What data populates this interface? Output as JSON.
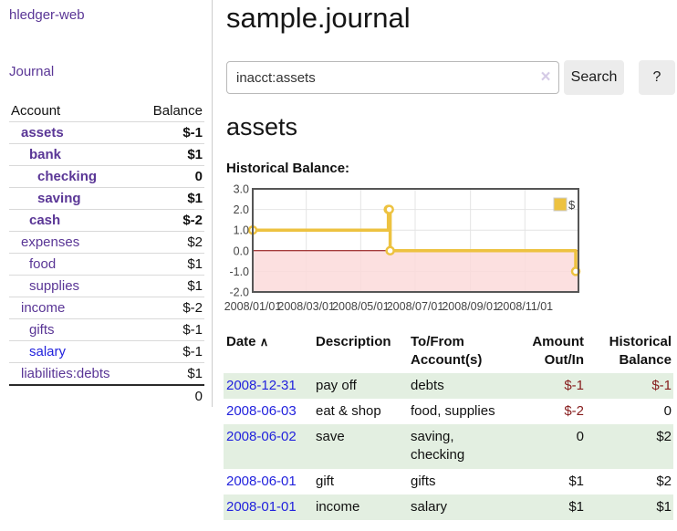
{
  "sidebar": {
    "brand": "hledger-web",
    "journal_label": "Journal",
    "accounts_table": {
      "headers": {
        "account": "Account",
        "balance": "Balance"
      },
      "rows": [
        {
          "label": "assets",
          "level": 1,
          "bold": true,
          "link_color": "purple",
          "balance": "$-1",
          "cls": "neg"
        },
        {
          "label": "bank",
          "level": 2,
          "bold": true,
          "link_color": "purple",
          "balance": "$1",
          "cls": ""
        },
        {
          "label": "checking",
          "level": 3,
          "bold": true,
          "link_color": "purple",
          "balance": "0",
          "cls": ""
        },
        {
          "label": "saving",
          "level": 3,
          "bold": true,
          "link_color": "purple",
          "balance": "$1",
          "cls": ""
        },
        {
          "label": "cash",
          "level": 2,
          "bold": true,
          "link_color": "purple",
          "balance": "$-2",
          "cls": "neg"
        },
        {
          "label": "expenses",
          "level": 1,
          "bold": false,
          "link_color": "purple",
          "balance": "$2",
          "cls": ""
        },
        {
          "label": "food",
          "level": 2,
          "bold": false,
          "link_color": "purple",
          "balance": "$1",
          "cls": ""
        },
        {
          "label": "supplies",
          "level": 2,
          "bold": false,
          "link_color": "purple",
          "balance": "$1",
          "cls": ""
        },
        {
          "label": "income",
          "level": 1,
          "bold": false,
          "link_color": "purple",
          "balance": "$-2",
          "cls": "negdim"
        },
        {
          "label": "gifts",
          "level": 2,
          "bold": false,
          "link_color": "purple",
          "balance": "$-1",
          "cls": "negdim"
        },
        {
          "label": "salary",
          "level": 2,
          "bold": false,
          "link_color": "blue",
          "balance": "$-1",
          "cls": "negdim"
        },
        {
          "label": "liabilities:debts",
          "level": 1,
          "bold": false,
          "link_color": "purple",
          "balance": "$1",
          "cls": ""
        }
      ],
      "total": "0"
    }
  },
  "header": {
    "title": "sample.journal"
  },
  "search": {
    "value": "inacct:assets",
    "clear_icon": "×",
    "button_label": "Search",
    "help_label": "?"
  },
  "account_page": {
    "heading": "assets",
    "chart_label": "Historical Balance:"
  },
  "chart_data": {
    "type": "line",
    "style": "step",
    "legend_entries": [
      "$"
    ],
    "legend_position": "top-right",
    "series": [
      {
        "name": "$",
        "color": "#edc240",
        "points": [
          [
            "2008-01-01",
            1
          ],
          [
            "2008-06-01",
            2
          ],
          [
            "2008-06-02",
            2
          ],
          [
            "2008-06-03",
            0
          ],
          [
            "2008-12-31",
            -1
          ]
        ]
      }
    ],
    "x_ticks": [
      "2008/01/01",
      "2008/03/01",
      "2008/05/01",
      "2008/07/01",
      "2008/09/01",
      "2008/11/01"
    ],
    "y_ticks": [
      "3.0",
      "2.0",
      "1.0",
      "0.0",
      "-1.0",
      "-2.0"
    ],
    "xlim": [
      "2008-01-01",
      "2008-12-31"
    ],
    "ylim": [
      -2,
      3
    ],
    "grid": true,
    "negative_region_color": "#fbdbdb",
    "zero_line_color": "#8b0000",
    "border_color": "#565656",
    "grid_color": "#e4e4e4",
    "axis_text_color": "#444444"
  },
  "register_table": {
    "headers": {
      "date": "Date",
      "sort_icon": "∧",
      "description": "Description",
      "tofrom": "To/From\nAccount(s)",
      "amount": "Amount\nOut/In",
      "historical": "Historical\nBalance"
    },
    "rows": [
      {
        "date": "2008-12-31",
        "description": "pay off",
        "accounts": "debts",
        "amount": "$-1",
        "historical": "$-1"
      },
      {
        "date": "2008-06-03",
        "description": "eat & shop",
        "accounts": "food, supplies",
        "amount": "$-2",
        "historical": "0"
      },
      {
        "date": "2008-06-02",
        "description": "save",
        "accounts": "saving,\nchecking",
        "amount": "0",
        "historical": "$2"
      },
      {
        "date": "2008-06-01",
        "description": "gift",
        "accounts": "gifts",
        "amount": "$1",
        "historical": "$2"
      },
      {
        "date": "2008-01-01",
        "description": "income",
        "accounts": "salary",
        "amount": "$1",
        "historical": "$1"
      }
    ]
  },
  "colors": {
    "link_purple": "#5a3696",
    "link_blue": "#2222dd",
    "negative": "#861c1c",
    "negative_dim": "#c98f8f",
    "row_green": "#e3efe1",
    "accent_gold": "#edc240"
  }
}
